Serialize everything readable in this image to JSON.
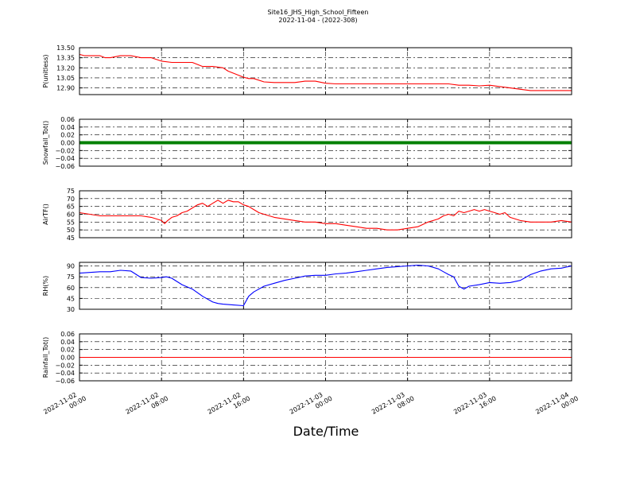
{
  "title": "Site16_JHS_High_School_Fifteen",
  "subtitle": "2022-11-04 - (2022-308)",
  "xlabel": "Date/Time",
  "x_ticks": [
    [
      "2022-11-02",
      "00:00"
    ],
    [
      "2022-11-02",
      "08:00"
    ],
    [
      "2022-11-02",
      "16:00"
    ],
    [
      "2022-11-03",
      "00:00"
    ],
    [
      "2022-11-03",
      "08:00"
    ],
    [
      "2022-11-03",
      "16:00"
    ],
    [
      "2022-11-04",
      "00:00"
    ]
  ],
  "chart_data": [
    {
      "type": "line",
      "ylabel": "P(unitless)",
      "color": "#ff0000",
      "grid": true,
      "xlim": [
        0,
        48
      ],
      "ylim": [
        12.8,
        13.5
      ],
      "yticks": [
        "12.90",
        "13.05",
        "13.20",
        "13.35",
        "13.50"
      ],
      "series": [
        {
          "x": [
            0,
            0.5,
            2,
            2.5,
            3,
            4,
            4.5,
            5,
            6,
            6.5,
            7,
            8,
            9,
            9.5,
            10,
            11,
            12,
            12.5,
            13,
            14,
            14.5,
            15,
            16,
            16.5,
            17,
            18,
            19,
            20,
            21,
            22,
            23,
            24,
            25,
            26,
            27,
            28,
            29,
            30,
            31,
            32,
            33,
            34,
            35,
            36,
            37,
            38,
            39,
            40,
            41,
            42,
            43,
            44,
            45,
            46,
            47,
            48
          ],
          "y": [
            13.4,
            13.38,
            13.38,
            13.35,
            13.35,
            13.38,
            13.38,
            13.38,
            13.35,
            13.35,
            13.35,
            13.3,
            13.28,
            13.28,
            13.28,
            13.28,
            13.22,
            13.22,
            13.22,
            13.2,
            13.15,
            13.12,
            13.06,
            13.04,
            13.04,
            12.99,
            12.98,
            12.98,
            12.98,
            13.0,
            13.0,
            12.97,
            12.96,
            12.96,
            12.96,
            12.96,
            12.96,
            12.96,
            12.96,
            12.96,
            12.96,
            12.96,
            12.96,
            12.96,
            12.94,
            12.94,
            12.93,
            12.94,
            12.92,
            12.9,
            12.88,
            12.86,
            12.86,
            12.86,
            12.86,
            12.86
          ]
        }
      ]
    },
    {
      "type": "line",
      "ylabel": "Snowfall_Tot()",
      "color": "#008000",
      "grid": true,
      "xlim": [
        0,
        48
      ],
      "ylim": [
        -0.06,
        0.06
      ],
      "yticks": [
        "−0.06",
        "−0.04",
        "−0.02",
        "0.00",
        "0.02",
        "0.04",
        "0.06"
      ],
      "series": [
        {
          "x": [
            0,
            48
          ],
          "y": [
            0,
            0
          ]
        }
      ]
    },
    {
      "type": "line",
      "ylabel": "AirTF()",
      "color": "#ff0000",
      "grid": true,
      "xlim": [
        0,
        48
      ],
      "ylim": [
        45,
        75
      ],
      "yticks": [
        "45",
        "50",
        "55",
        "60",
        "65",
        "70",
        "75"
      ],
      "series": [
        {
          "x": [
            0,
            1,
            2,
            3,
            4,
            5,
            6,
            7,
            7.5,
            8,
            8.3,
            8.6,
            9,
            9.5,
            10,
            10.5,
            11,
            11.5,
            12,
            12.5,
            13,
            13.5,
            14,
            14.5,
            15,
            15.5,
            16,
            16.5,
            17,
            17.5,
            18,
            19,
            20,
            21,
            22,
            23,
            24,
            25,
            26,
            27,
            28,
            29,
            30,
            31,
            32,
            33,
            34,
            35,
            35.5,
            36,
            36.5,
            37,
            37.5,
            38,
            38.5,
            39,
            39.5,
            40,
            40.5,
            41,
            41.5,
            42,
            43,
            44,
            45,
            46,
            47,
            48
          ],
          "y": [
            61,
            60,
            59,
            59,
            59,
            59,
            59,
            58,
            57,
            56,
            54,
            56,
            58,
            59,
            61,
            62,
            64,
            66,
            67,
            65,
            67,
            69,
            67,
            69,
            68,
            68,
            66,
            65,
            63,
            61,
            60,
            58,
            57,
            56,
            55,
            55,
            54,
            54,
            53,
            52,
            51,
            51,
            50,
            50,
            51,
            52,
            55,
            57,
            59,
            60,
            59,
            62,
            61,
            62,
            63,
            62,
            63,
            62,
            61,
            60,
            61,
            58,
            56,
            55,
            55,
            55,
            56,
            55
          ]
        }
      ]
    },
    {
      "type": "line",
      "ylabel": "RH(%)",
      "color": "#0000ff",
      "grid": true,
      "xlim": [
        0,
        48
      ],
      "ylim": [
        30,
        95
      ],
      "yticks": [
        "30",
        "45",
        "60",
        "75",
        "90"
      ],
      "series": [
        {
          "x": [
            0,
            1,
            2,
            3,
            4,
            5,
            6,
            7,
            8,
            8.5,
            9,
            10,
            11,
            12,
            13,
            13.5,
            14,
            15,
            16,
            16.5,
            17,
            18,
            19,
            20,
            21,
            22,
            23,
            24,
            25,
            26,
            27,
            28,
            29,
            30,
            31,
            32,
            33,
            34,
            35,
            35.5,
            36,
            36.5,
            37,
            37.5,
            38,
            39,
            40,
            41,
            42,
            43,
            44,
            45,
            46,
            47,
            48
          ],
          "y": [
            80,
            81,
            82,
            82,
            84,
            83,
            74,
            73,
            74,
            75,
            73,
            64,
            58,
            48,
            40,
            38,
            37,
            36,
            35,
            48,
            54,
            62,
            66,
            70,
            73,
            76,
            77,
            77,
            79,
            80,
            82,
            84,
            86,
            88,
            89,
            90,
            91,
            90,
            86,
            82,
            78,
            75,
            62,
            58,
            62,
            64,
            67,
            66,
            67,
            70,
            78,
            83,
            86,
            87,
            90
          ]
        }
      ]
    },
    {
      "type": "line",
      "ylabel": "Rainfall_Tot()",
      "color": "#ff0000",
      "grid": true,
      "xlim": [
        0,
        48
      ],
      "ylim": [
        -0.06,
        0.06
      ],
      "yticks": [
        "−0.06",
        "−0.04",
        "−0.02",
        "0.00",
        "0.02",
        "0.04",
        "0.06"
      ],
      "series": [
        {
          "x": [
            0,
            48
          ],
          "y": [
            0,
            0
          ]
        }
      ]
    }
  ]
}
